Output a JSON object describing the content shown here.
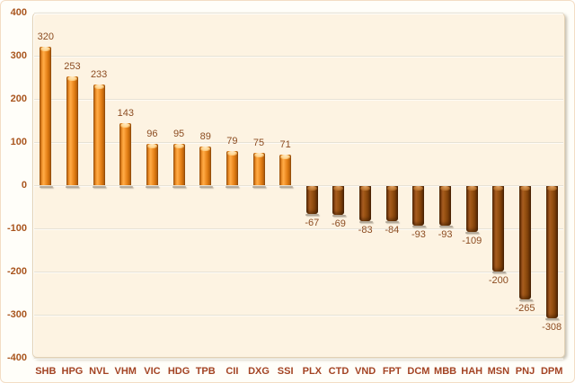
{
  "chart_data": {
    "type": "bar",
    "title": "",
    "xlabel": "",
    "ylabel": "",
    "categories": [
      "SHB",
      "HPG",
      "NVL",
      "VHM",
      "VIC",
      "HDG",
      "TPB",
      "CII",
      "DXG",
      "SSI",
      "PLX",
      "CTD",
      "VND",
      "FPT",
      "DCM",
      "MBB",
      "HAH",
      "MSN",
      "PNJ",
      "DPM"
    ],
    "values": [
      320,
      253,
      233,
      143,
      96,
      95,
      89,
      79,
      75,
      71,
      -67,
      -69,
      -83,
      -84,
      -93,
      -93,
      -109,
      -200,
      -265,
      -308
    ],
    "value_labels": [
      "320",
      "253",
      "233",
      "143",
      "96",
      "95",
      "89",
      "79",
      "75",
      "71",
      "-67",
      "-69",
      "-83",
      "-84",
      "-93",
      "-93",
      "-109",
      "-200",
      "-265",
      "-308"
    ],
    "y_ticks": [
      400,
      300,
      200,
      100,
      0,
      -100,
      -200,
      -300,
      -400
    ],
    "y_tick_labels": [
      "400",
      "300",
      "200",
      "100",
      "0",
      "-100",
      "-200",
      "-300",
      "-400"
    ],
    "ylim": [
      -400,
      400
    ],
    "grid": true,
    "legend": false,
    "colors": {
      "positive_bar": "#EF8B22",
      "negative_bar": "#8B4513",
      "plot_background": "#FDF3E2",
      "page_background": "#FFFEF9",
      "gridline": "#E7E2D5",
      "axis_label": "#A9551E",
      "category_label": "#A34323",
      "value_label": "#8C4C21"
    }
  }
}
